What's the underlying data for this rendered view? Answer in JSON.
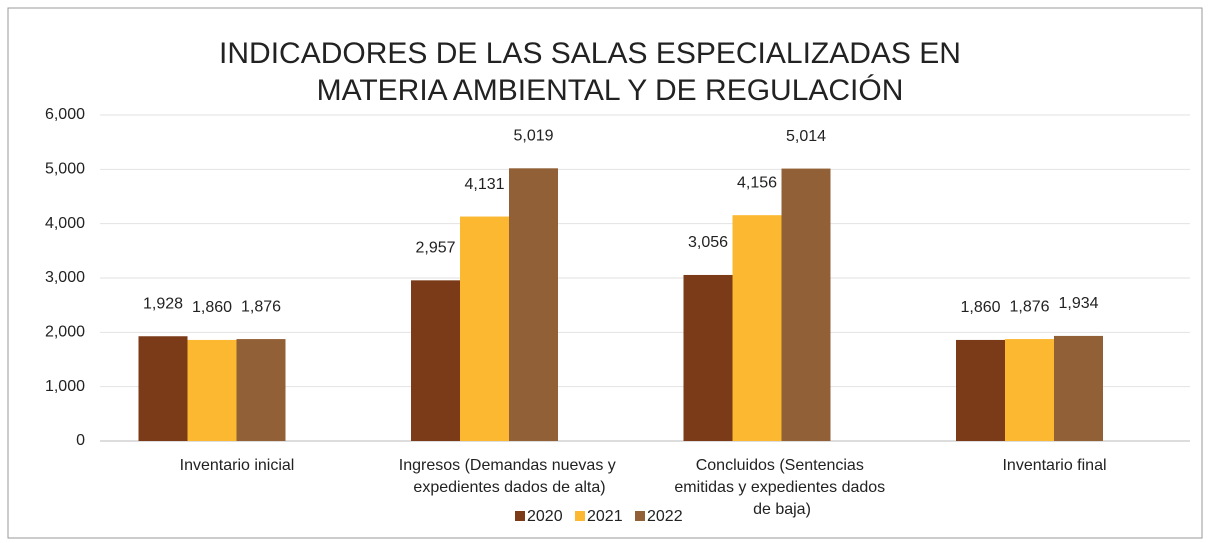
{
  "chart_data": {
    "type": "bar",
    "title": [
      "INDICADORES DE LAS SALAS ESPECIALIZADAS EN",
      "MATERIA AMBIENTAL Y DE REGULACIÓN"
    ],
    "categories": [
      "Inventario inicial",
      "Ingresos (Demandas nuevas y expedientes dados de alta)",
      "Concluidos (Sentencias emitidas y expedientes dados de baja)",
      "Inventario final"
    ],
    "series": [
      {
        "name": "2020",
        "color": "#7b3a18",
        "values": [
          1928,
          2957,
          3056,
          1860
        ],
        "value_labels": [
          "1,928",
          "2,957",
          "3,056",
          "1,860"
        ]
      },
      {
        "name": "2021",
        "color": "#fbb830",
        "values": [
          1860,
          4131,
          4156,
          1876
        ],
        "value_labels": [
          "1,860",
          "4,131",
          "4,156",
          "1,876"
        ]
      },
      {
        "name": "2022",
        "color": "#926037",
        "values": [
          1876,
          5019,
          5014,
          1934
        ],
        "value_labels": [
          "1,876",
          "5,019",
          "5,014",
          "1,934"
        ]
      }
    ],
    "ylim": [
      0,
      6000
    ],
    "yticks": [
      0,
      {
        "value": 1000,
        "label": "1,000"
      },
      {
        "value": 2000,
        "label": "2,000"
      },
      {
        "value": 3000,
        "label": "3,000"
      },
      {
        "value": 4000,
        "label": "4,000"
      },
      {
        "value": 5000,
        "label": "5,000"
      },
      {
        "value": 6000,
        "label": "6,000"
      }
    ],
    "grid": true,
    "legend": "bottom"
  }
}
